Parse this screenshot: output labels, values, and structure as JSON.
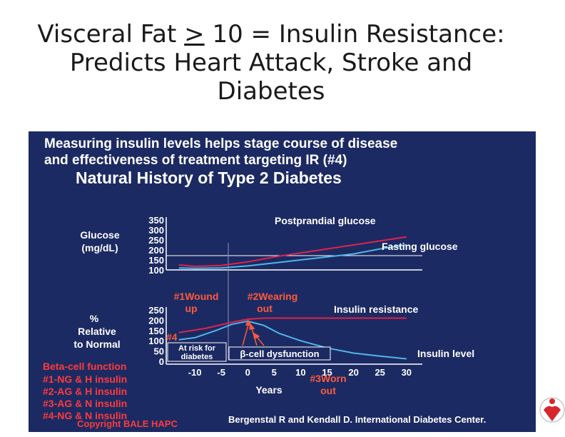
{
  "slide": {
    "title_part1": "Visceral Fat ",
    "title_ge": ">",
    "title_part2": " 10 = Insulin Resistance:",
    "title_line2": "Predicts Heart Attack, Stroke and",
    "title_line3": "Diabetes"
  },
  "chart_data": [
    {
      "type": "line",
      "panel": "glucose",
      "header_line1": "Measuring insulin levels helps stage course of disease",
      "header_line2": "and effectiveness of treatment targeting IR (#4)",
      "title": "Natural History of Type 2 Diabetes",
      "ylabel_line1": "Glucose",
      "ylabel_line2": "(mg/dL)",
      "yticks": [
        "350",
        "300",
        "250",
        "200",
        "150",
        "100"
      ],
      "ylim": [
        100,
        350
      ],
      "xlim": [
        -15,
        33
      ],
      "series": [
        {
          "name": "Postprandial glucose",
          "color": "#e0234a",
          "x": [
            -13,
            -10,
            -5,
            0,
            5,
            10,
            15,
            20,
            25,
            30
          ],
          "values": [
            125,
            118,
            122,
            140,
            165,
            185,
            205,
            225,
            245,
            265
          ]
        },
        {
          "name": "Fasting glucose",
          "color": "#4fb6e6",
          "x": [
            -13,
            -10,
            -5,
            0,
            5,
            10,
            15,
            20,
            25,
            30
          ],
          "values": [
            110,
            108,
            110,
            120,
            135,
            150,
            165,
            180,
            205,
            225
          ]
        }
      ]
    },
    {
      "type": "line",
      "panel": "insulin",
      "ylabel_line1": "%",
      "ylabel_line2": "Relative",
      "ylabel_line3": "to Normal",
      "yticks": [
        "250",
        "200",
        "150",
        "100",
        "50",
        "0"
      ],
      "ylim": [
        0,
        250
      ],
      "xlabel": "Years",
      "xticks": [
        "-10",
        "-5",
        "0",
        "5",
        "10",
        "15",
        "20",
        "25",
        "30"
      ],
      "xtick_values": [
        -10,
        -5,
        0,
        5,
        10,
        15,
        20,
        25,
        30
      ],
      "xlim": [
        -15,
        33
      ],
      "series": [
        {
          "name": "Insulin resistance",
          "color": "#e0234a",
          "x": [
            -13,
            -8,
            -3,
            0,
            3,
            8,
            15,
            20,
            25,
            30
          ],
          "values": [
            140,
            160,
            190,
            205,
            210,
            210,
            210,
            210,
            210,
            210
          ]
        },
        {
          "name": "Insulin level",
          "color": "#4fb6e6",
          "x": [
            -13,
            -10,
            -6,
            -3,
            0,
            3,
            6,
            10,
            15,
            20,
            25,
            30
          ],
          "values": [
            105,
            115,
            150,
            180,
            195,
            175,
            135,
            100,
            65,
            40,
            25,
            12
          ]
        }
      ],
      "annotations": {
        "wound_line1": "#1Wound",
        "wound_line2": "up",
        "wearing_line1": "#2Wearing",
        "wearing_line2": "out",
        "stage4": "#4",
        "at_risk_line1": "At risk for",
        "at_risk_line2": "diabetes",
        "dysfunction": "β-cell dysfunction",
        "worn_line1": "#3Worn",
        "worn_line2": "out"
      }
    }
  ],
  "legend": {
    "heading": "Beta-cell function",
    "items": [
      "#1-NG & H insulin",
      "#2-AG & H insulin",
      "#3-AG & N insulin",
      "#4-NG & N insulin"
    ]
  },
  "footer": {
    "copyright": "Copyright BALE HAPC",
    "credit": "Bergenstal R and Kendall D. International Diabetes Center."
  },
  "colors": {
    "panel_bg": "#1c2a63",
    "header_text": "#ffffff",
    "legend_text": "#ff3b3b",
    "annotation_text": "#ff5a3c",
    "red_series": "#e0234a",
    "blue_series": "#4fb6e6"
  },
  "logo_icon": "heart-person-logo-icon"
}
